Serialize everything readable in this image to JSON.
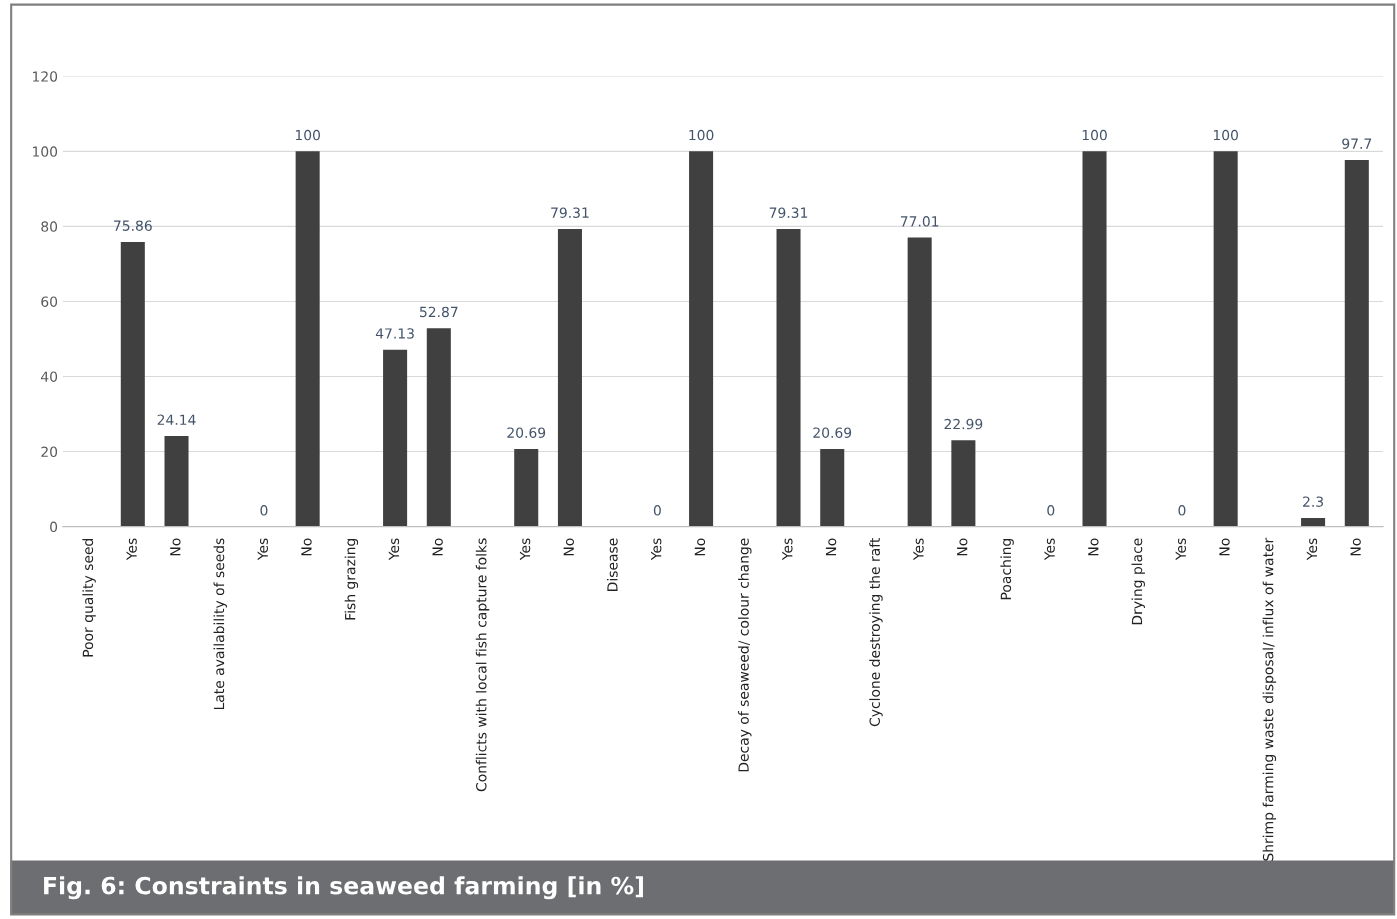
{
  "chart_data": {
    "type": "bar",
    "title": "Fig. 6: Constraints in seaweed farming [in %]",
    "categories": [
      "Poor quality seed",
      "Yes",
      "No",
      "Late availability of seeds",
      "Yes",
      "No",
      "Fish grazing",
      "Yes",
      "No",
      "Conflicts with local fish capture folks",
      "Yes",
      "No",
      "Disease",
      "Yes",
      "No",
      "Decay of seaweed/ colour change",
      "Yes",
      "No",
      "Cyclone destroying the raft",
      "Yes",
      "No",
      "Poaching",
      "Yes",
      "No",
      "Drying place",
      "Yes",
      "No",
      "Shrimp farming waste disposal/ influx of water",
      "Yes",
      "No"
    ],
    "values": [
      null,
      75.86,
      24.14,
      null,
      0,
      100,
      null,
      47.13,
      52.87,
      null,
      20.69,
      79.31,
      null,
      0,
      100,
      null,
      79.31,
      20.69,
      null,
      77.01,
      22.99,
      null,
      0,
      100,
      null,
      0,
      100,
      null,
      2.3,
      97.7
    ],
    "color": "#404040",
    "ylim": [
      0,
      120
    ],
    "yticks": [
      0,
      20,
      40,
      60,
      80,
      100,
      120
    ],
    "grid": "y",
    "data_labels": true
  }
}
